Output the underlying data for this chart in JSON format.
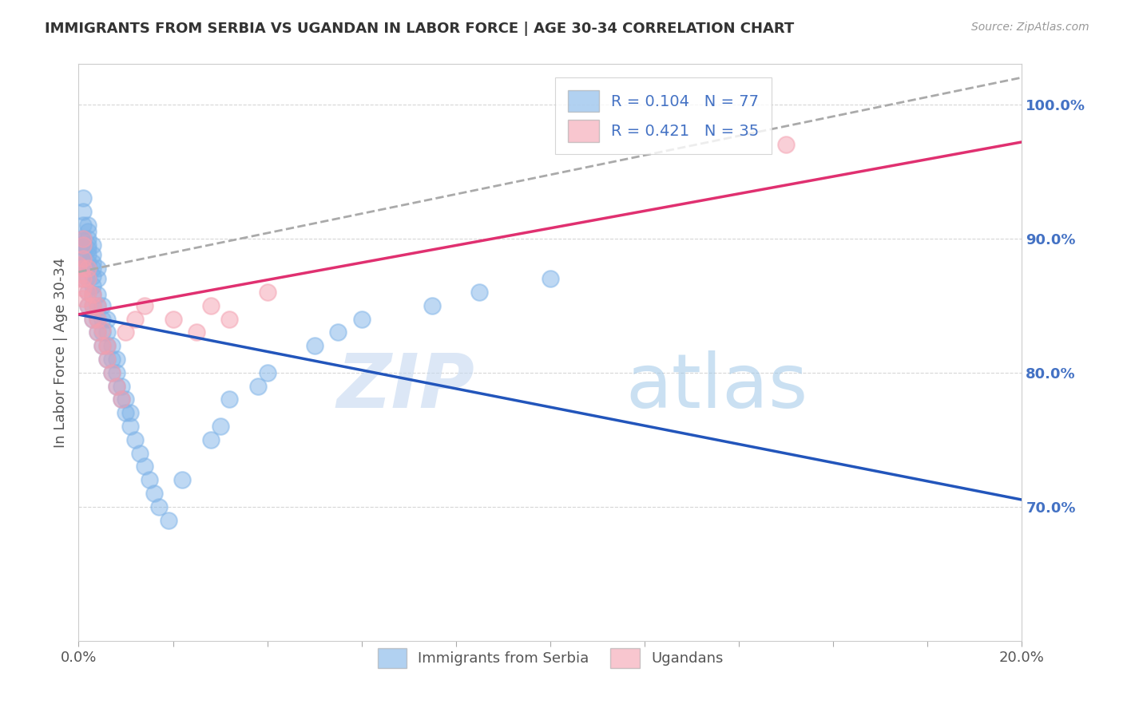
{
  "title": "IMMIGRANTS FROM SERBIA VS UGANDAN IN LABOR FORCE | AGE 30-34 CORRELATION CHART",
  "source": "Source: ZipAtlas.com",
  "ylabel_left": "In Labor Force | Age 30-34",
  "x_min": 0.0,
  "x_max": 0.2,
  "y_min": 0.6,
  "y_max": 1.03,
  "y_ticks_right": [
    0.7,
    0.8,
    0.9,
    1.0
  ],
  "y_tick_labels_right": [
    "70.0%",
    "80.0%",
    "90.0%",
    "100.0%"
  ],
  "serbia_color": "#7eb3e8",
  "serbia_line_color": "#2255bb",
  "uganda_color": "#f4a0b0",
  "uganda_line_color": "#e03070",
  "dashed_line_color": "#aaaaaa",
  "legend_serbia_label": "R = 0.104   N = 77",
  "legend_uganda_label": "R = 0.421   N = 35",
  "serbia_x": [
    0.0,
    0.0,
    0.001,
    0.001,
    0.001,
    0.001,
    0.001,
    0.001,
    0.001,
    0.001,
    0.001,
    0.001,
    0.002,
    0.002,
    0.002,
    0.002,
    0.002,
    0.002,
    0.002,
    0.002,
    0.002,
    0.002,
    0.002,
    0.003,
    0.003,
    0.003,
    0.003,
    0.003,
    0.003,
    0.003,
    0.003,
    0.003,
    0.004,
    0.004,
    0.004,
    0.004,
    0.004,
    0.004,
    0.005,
    0.005,
    0.005,
    0.005,
    0.006,
    0.006,
    0.006,
    0.006,
    0.007,
    0.007,
    0.007,
    0.008,
    0.008,
    0.008,
    0.009,
    0.009,
    0.01,
    0.01,
    0.011,
    0.011,
    0.012,
    0.013,
    0.014,
    0.015,
    0.016,
    0.017,
    0.019,
    0.022,
    0.028,
    0.03,
    0.032,
    0.038,
    0.04,
    0.05,
    0.055,
    0.06,
    0.075,
    0.085,
    0.1
  ],
  "serbia_y": [
    0.88,
    0.895,
    0.87,
    0.88,
    0.888,
    0.893,
    0.895,
    0.898,
    0.9,
    0.91,
    0.92,
    0.93,
    0.85,
    0.86,
    0.87,
    0.878,
    0.882,
    0.888,
    0.892,
    0.895,
    0.9,
    0.905,
    0.91,
    0.84,
    0.85,
    0.858,
    0.865,
    0.872,
    0.878,
    0.882,
    0.888,
    0.895,
    0.83,
    0.84,
    0.85,
    0.858,
    0.87,
    0.878,
    0.82,
    0.83,
    0.84,
    0.85,
    0.81,
    0.82,
    0.83,
    0.84,
    0.8,
    0.81,
    0.82,
    0.79,
    0.8,
    0.81,
    0.78,
    0.79,
    0.77,
    0.78,
    0.76,
    0.77,
    0.75,
    0.74,
    0.73,
    0.72,
    0.71,
    0.7,
    0.69,
    0.72,
    0.75,
    0.76,
    0.78,
    0.79,
    0.8,
    0.82,
    0.83,
    0.84,
    0.85,
    0.86,
    0.87
  ],
  "uganda_x": [
    0.0,
    0.0,
    0.001,
    0.001,
    0.001,
    0.001,
    0.001,
    0.001,
    0.001,
    0.002,
    0.002,
    0.002,
    0.002,
    0.003,
    0.003,
    0.003,
    0.004,
    0.004,
    0.004,
    0.005,
    0.005,
    0.006,
    0.006,
    0.007,
    0.008,
    0.009,
    0.01,
    0.012,
    0.014,
    0.02,
    0.025,
    0.028,
    0.032,
    0.04,
    0.15
  ],
  "uganda_y": [
    0.87,
    0.88,
    0.855,
    0.863,
    0.87,
    0.878,
    0.885,
    0.895,
    0.9,
    0.85,
    0.86,
    0.87,
    0.878,
    0.84,
    0.85,
    0.858,
    0.83,
    0.84,
    0.85,
    0.82,
    0.832,
    0.81,
    0.82,
    0.8,
    0.79,
    0.78,
    0.83,
    0.84,
    0.85,
    0.84,
    0.83,
    0.85,
    0.84,
    0.86,
    0.97
  ],
  "watermark_zip": "ZIP",
  "watermark_atlas": "atlas",
  "background_color": "#ffffff",
  "grid_color": "#cccccc",
  "right_axis_color": "#4472c4",
  "title_color": "#333333"
}
